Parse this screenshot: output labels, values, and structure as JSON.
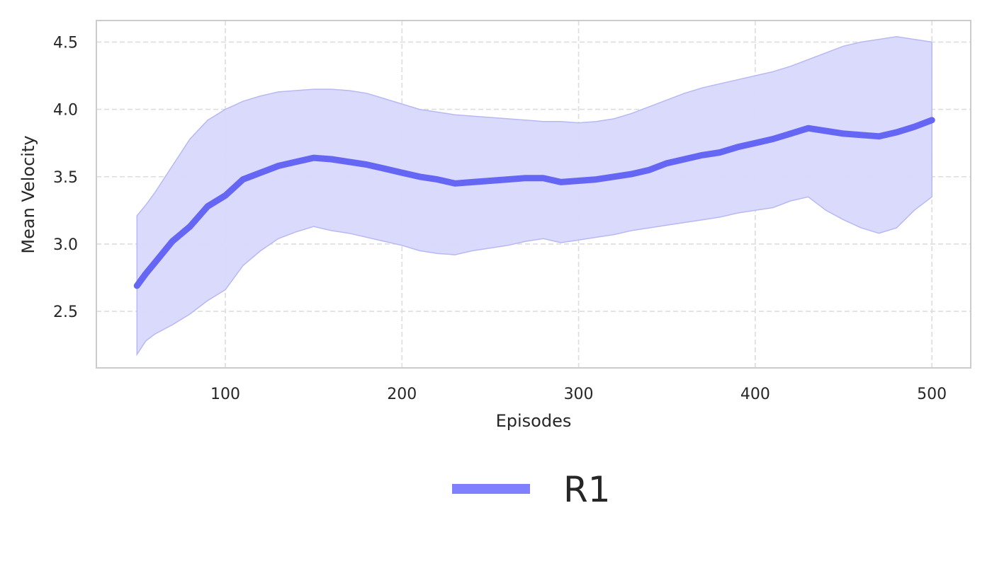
{
  "chart_data": {
    "type": "line",
    "xlabel": "Episodes",
    "ylabel": "Mean Velocity",
    "xlim": [
      27,
      522
    ],
    "ylim": [
      2.08,
      4.66
    ],
    "xticks": [
      100,
      200,
      300,
      400,
      500
    ],
    "yticks": [
      2.5,
      3.0,
      3.5,
      4.0,
      4.5
    ],
    "xtick_labels": [
      "100",
      "200",
      "300",
      "400",
      "500"
    ],
    "ytick_labels": [
      "2.5",
      "3.0",
      "3.5",
      "4.0",
      "4.5"
    ],
    "grid": true,
    "legend_position": "bottom-center",
    "colors": {
      "line": "#6666f5",
      "band": "#d8d8fd",
      "band_edge": "#b8b8f4",
      "legend_line": "#8080ff"
    },
    "series": [
      {
        "name": "R1",
        "x": [
          50,
          55,
          60,
          70,
          80,
          90,
          100,
          110,
          120,
          130,
          140,
          150,
          160,
          170,
          180,
          190,
          200,
          210,
          220,
          230,
          240,
          250,
          260,
          270,
          280,
          290,
          300,
          310,
          320,
          330,
          340,
          350,
          360,
          370,
          380,
          390,
          400,
          410,
          420,
          430,
          440,
          450,
          460,
          470,
          480,
          490,
          500
        ],
        "y": [
          2.69,
          2.78,
          2.86,
          3.02,
          3.13,
          3.28,
          3.36,
          3.48,
          3.53,
          3.58,
          3.61,
          3.64,
          3.63,
          3.61,
          3.59,
          3.56,
          3.53,
          3.5,
          3.48,
          3.45,
          3.46,
          3.47,
          3.48,
          3.49,
          3.49,
          3.46,
          3.47,
          3.48,
          3.5,
          3.52,
          3.55,
          3.6,
          3.63,
          3.66,
          3.68,
          3.72,
          3.75,
          3.78,
          3.82,
          3.86,
          3.84,
          3.82,
          3.81,
          3.8,
          3.83,
          3.87,
          3.92
        ],
        "lower": [
          2.18,
          2.28,
          2.33,
          2.4,
          2.48,
          2.58,
          2.66,
          2.84,
          2.95,
          3.04,
          3.09,
          3.13,
          3.1,
          3.08,
          3.05,
          3.02,
          2.99,
          2.95,
          2.93,
          2.92,
          2.95,
          2.97,
          2.99,
          3.02,
          3.04,
          3.01,
          3.03,
          3.05,
          3.07,
          3.1,
          3.12,
          3.14,
          3.16,
          3.18,
          3.2,
          3.23,
          3.25,
          3.27,
          3.32,
          3.35,
          3.25,
          3.18,
          3.12,
          3.08,
          3.12,
          3.25,
          3.35
        ],
        "upper": [
          3.21,
          3.29,
          3.38,
          3.58,
          3.78,
          3.92,
          4.0,
          4.06,
          4.1,
          4.13,
          4.14,
          4.15,
          4.15,
          4.14,
          4.12,
          4.08,
          4.04,
          4.0,
          3.98,
          3.96,
          3.95,
          3.94,
          3.93,
          3.92,
          3.91,
          3.91,
          3.9,
          3.91,
          3.93,
          3.97,
          4.02,
          4.07,
          4.12,
          4.16,
          4.19,
          4.22,
          4.25,
          4.28,
          4.32,
          4.37,
          4.42,
          4.47,
          4.5,
          4.52,
          4.54,
          4.52,
          4.5
        ]
      }
    ]
  }
}
